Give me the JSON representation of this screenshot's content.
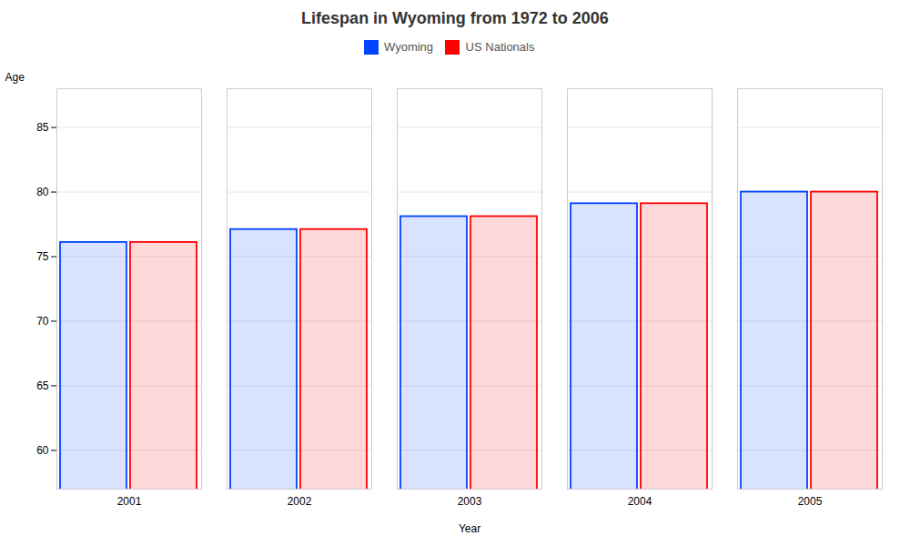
{
  "chart_data": {
    "type": "bar",
    "title": "Lifespan in Wyoming from 1972 to 2006",
    "xlabel": "Year",
    "ylabel": "Age",
    "categories": [
      "2001",
      "2002",
      "2003",
      "2004",
      "2005"
    ],
    "series": [
      {
        "name": "Wyoming",
        "color": "#0044ff",
        "values": [
          76.1,
          77.1,
          78.1,
          79.1,
          80.0
        ]
      },
      {
        "name": "US Nationals",
        "color": "#ff0000",
        "values": [
          76.1,
          77.1,
          78.1,
          79.1,
          80.0
        ]
      }
    ],
    "ylim": [
      57,
      88
    ],
    "yticks": [
      60,
      65,
      70,
      75,
      80,
      85
    ],
    "grid": true,
    "legend": "top"
  }
}
